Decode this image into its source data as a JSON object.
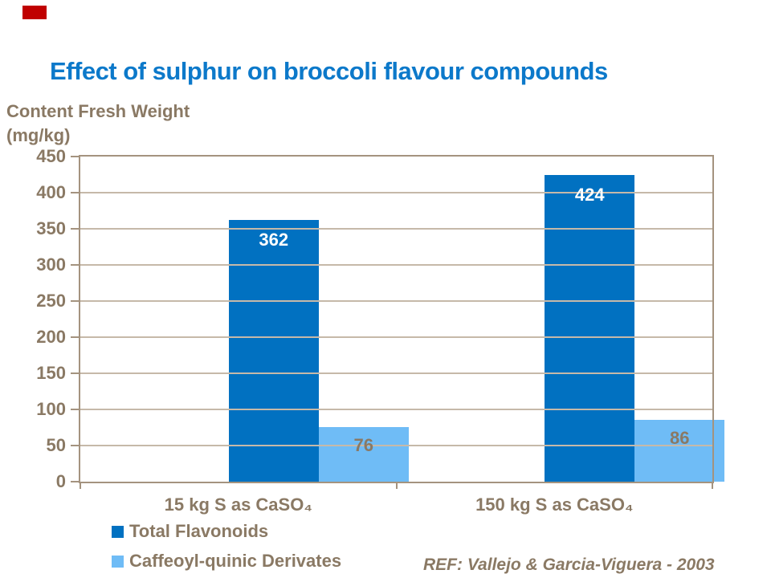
{
  "title": {
    "text": "Effect of sulphur on broccoli flavour compounds"
  },
  "y_axis_title": {
    "line1": "Content Fresh Weight",
    "line2": "(mg/kg)"
  },
  "reference": {
    "text": "REF: Vallejo & Garcia-Viguera - 2003"
  },
  "colors": {
    "title_blue": "#0C79CA",
    "text_brown": "#8A7964",
    "axis_line": "#A4937F",
    "gridline": "#C6B9A9",
    "bar_dark_blue": "#0171C1",
    "bar_light_blue": "#6FBCF6",
    "value_label_on_dark": "#FFFFFF",
    "marker_red": "#C00000"
  },
  "chart_data": {
    "type": "bar",
    "title": "Effect of sulphur on broccoli flavour compounds",
    "categories": [
      "15 kg S as CaSO₄",
      "150 kg S as CaSO₄"
    ],
    "series": [
      {
        "name": "Total Flavonoids",
        "values": [
          362,
          424
        ],
        "color": "#0171C1",
        "value_label_color": "#FFFFFF"
      },
      {
        "name": "Caffeoyl-quinic Derivates",
        "values": [
          76,
          86
        ],
        "color": "#6FBCF6",
        "value_label_color": "#8A7964"
      }
    ],
    "xlabel": "",
    "ylabel": "Content Fresh Weight (mg/kg)",
    "ylim": [
      0,
      450
    ],
    "ytick_step": 50,
    "grid": true,
    "value_labels_shown": true,
    "legend_position": "bottom-left",
    "annotation": "REF: Vallejo & Garcia-Viguera - 2003"
  }
}
